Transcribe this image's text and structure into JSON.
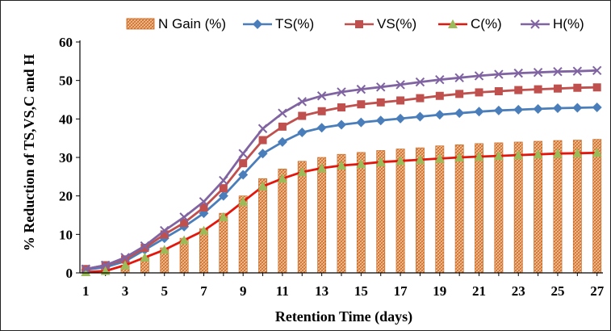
{
  "chart_data": {
    "type": "bar+line",
    "title": "",
    "xlabel": "Retention Time (days)",
    "ylabel": "% Reduction  of  TS,VS,C and H",
    "ylim": [
      0,
      60
    ],
    "yticks": [
      0,
      10,
      20,
      30,
      40,
      50,
      60
    ],
    "x": [
      1,
      2,
      3,
      4,
      5,
      6,
      7,
      8,
      9,
      10,
      11,
      12,
      13,
      14,
      15,
      16,
      17,
      18,
      19,
      20,
      21,
      22,
      23,
      24,
      25,
      26,
      27
    ],
    "xtick_labels": [
      "1",
      "3",
      "5",
      "7",
      "9",
      "11",
      "13",
      "15",
      "17",
      "19",
      "21",
      "23",
      "25",
      "27"
    ],
    "legend_position": "top",
    "series": [
      {
        "name": "N Gain (%)",
        "kind": "bar",
        "color": "#e8893c",
        "values": [
          0.5,
          1.0,
          2.0,
          4.0,
          6.5,
          9.0,
          11.5,
          15.5,
          20.0,
          24.5,
          27.0,
          29.0,
          30.0,
          30.8,
          31.3,
          31.8,
          32.2,
          32.5,
          33.0,
          33.3,
          33.6,
          33.8,
          34.0,
          34.2,
          34.4,
          34.5,
          34.7
        ]
      },
      {
        "name": "TS(%)",
        "kind": "line",
        "color": "#4a7ebb",
        "marker": "diamond",
        "values": [
          0.8,
          1.5,
          3.0,
          6.0,
          9.0,
          12.0,
          15.5,
          20.0,
          25.5,
          31.0,
          34.0,
          36.5,
          37.7,
          38.5,
          39.1,
          39.6,
          40.1,
          40.6,
          41.1,
          41.5,
          41.9,
          42.2,
          42.4,
          42.6,
          42.8,
          42.9,
          43.0
        ]
      },
      {
        "name": "VS(%)",
        "kind": "line",
        "color": "#c0504d",
        "marker": "square",
        "values": [
          1.0,
          2.0,
          3.5,
          6.5,
          10.0,
          13.0,
          17.0,
          22.0,
          28.5,
          34.5,
          38.0,
          40.8,
          42.0,
          43.0,
          43.8,
          44.3,
          44.8,
          45.4,
          46.0,
          46.5,
          46.9,
          47.2,
          47.5,
          47.7,
          47.9,
          48.1,
          48.2
        ]
      },
      {
        "name": "C(%)",
        "kind": "line",
        "color": "#e4160c",
        "marker": "triangle",
        "marker_color": "#9bbb59",
        "values": [
          0.2,
          0.5,
          2.0,
          4.0,
          6.0,
          8.5,
          11.0,
          14.5,
          18.5,
          22.5,
          24.5,
          26.2,
          27.2,
          27.9,
          28.3,
          28.8,
          29.1,
          29.4,
          29.7,
          30.0,
          30.2,
          30.4,
          30.6,
          30.8,
          31.0,
          31.1,
          31.2
        ]
      },
      {
        "name": "H(%)",
        "kind": "line",
        "color": "#8064a2",
        "marker": "x",
        "values": [
          1.0,
          2.0,
          4.0,
          7.0,
          11.0,
          14.5,
          18.5,
          24.0,
          31.0,
          37.5,
          41.5,
          44.5,
          46.0,
          47.0,
          47.7,
          48.3,
          48.9,
          49.6,
          50.2,
          50.7,
          51.2,
          51.6,
          51.9,
          52.1,
          52.3,
          52.4,
          52.6
        ]
      }
    ]
  }
}
